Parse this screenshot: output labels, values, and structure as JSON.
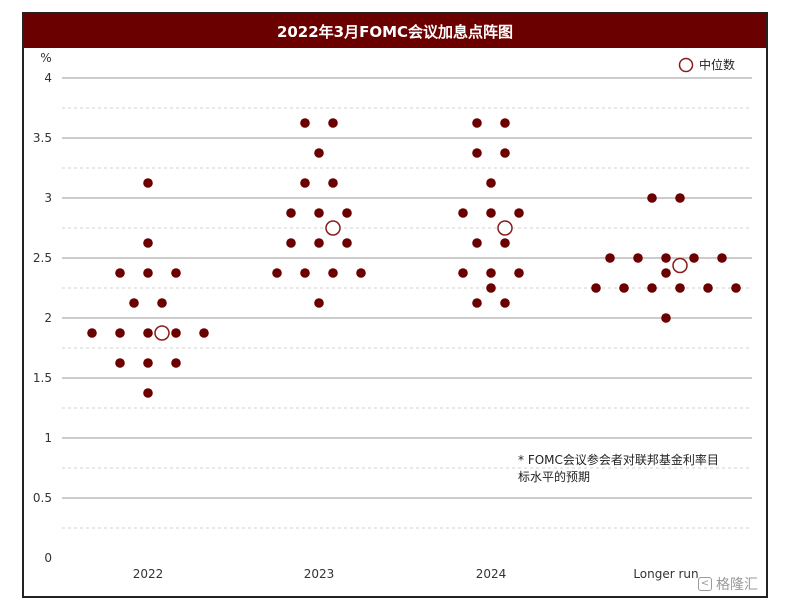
{
  "chart_data": {
    "type": "scatter",
    "title": "2022年3月FOMC会议加息点阵图",
    "ylabel": "%",
    "ylim": [
      0,
      4
    ],
    "yticks": [
      0,
      0.5,
      1,
      1.5,
      2,
      2.5,
      3,
      3.5,
      4
    ],
    "ytick_labels": [
      "0",
      "0.5",
      "1",
      "1.5",
      "2",
      "2.5",
      "3",
      "3.5",
      "4"
    ],
    "categories": [
      "2022",
      "2023",
      "2024",
      "Longer run"
    ],
    "grid": "horizontal",
    "legend": {
      "label": "中位数",
      "placement": "top-right"
    },
    "annotation": "*  FOMC会议参会者对联邦基金利率目标水平的预期",
    "colors": {
      "dot": "#6b0000",
      "median": "#8b1a1a",
      "title_bg": "#6b0000"
    },
    "groups": [
      {
        "category": "2022",
        "rows": [
          {
            "y": 3.125,
            "count": 1
          },
          {
            "y": 2.625,
            "count": 1
          },
          {
            "y": 2.375,
            "count": 3
          },
          {
            "y": 2.125,
            "count": 2
          },
          {
            "y": 1.875,
            "count": 5
          },
          {
            "y": 1.625,
            "count": 3
          },
          {
            "y": 1.375,
            "count": 1
          }
        ],
        "median": 1.875
      },
      {
        "category": "2023",
        "rows": [
          {
            "y": 3.625,
            "count": 2
          },
          {
            "y": 3.375,
            "count": 1
          },
          {
            "y": 3.125,
            "count": 2
          },
          {
            "y": 2.875,
            "count": 3
          },
          {
            "y": 2.625,
            "count": 3
          },
          {
            "y": 2.375,
            "count": 4
          },
          {
            "y": 2.125,
            "count": 1
          }
        ],
        "median": 2.75
      },
      {
        "category": "2024",
        "rows": [
          {
            "y": 3.625,
            "count": 2
          },
          {
            "y": 3.375,
            "count": 2
          },
          {
            "y": 3.125,
            "count": 1
          },
          {
            "y": 2.875,
            "count": 3
          },
          {
            "y": 2.625,
            "count": 2
          },
          {
            "y": 2.375,
            "count": 3
          },
          {
            "y": 2.25,
            "count": 1
          },
          {
            "y": 2.125,
            "count": 2
          }
        ],
        "median": 2.75
      },
      {
        "category": "Longer run",
        "rows": [
          {
            "y": 3.0,
            "count": 2
          },
          {
            "y": 2.5,
            "count": 5
          },
          {
            "y": 2.375,
            "count": 1
          },
          {
            "y": 2.25,
            "count": 6
          },
          {
            "y": 2.0,
            "count": 1
          }
        ],
        "median": 2.4375
      }
    ]
  },
  "watermark": {
    "text": "格隆汇",
    "icon": "chevron-logo-icon"
  }
}
